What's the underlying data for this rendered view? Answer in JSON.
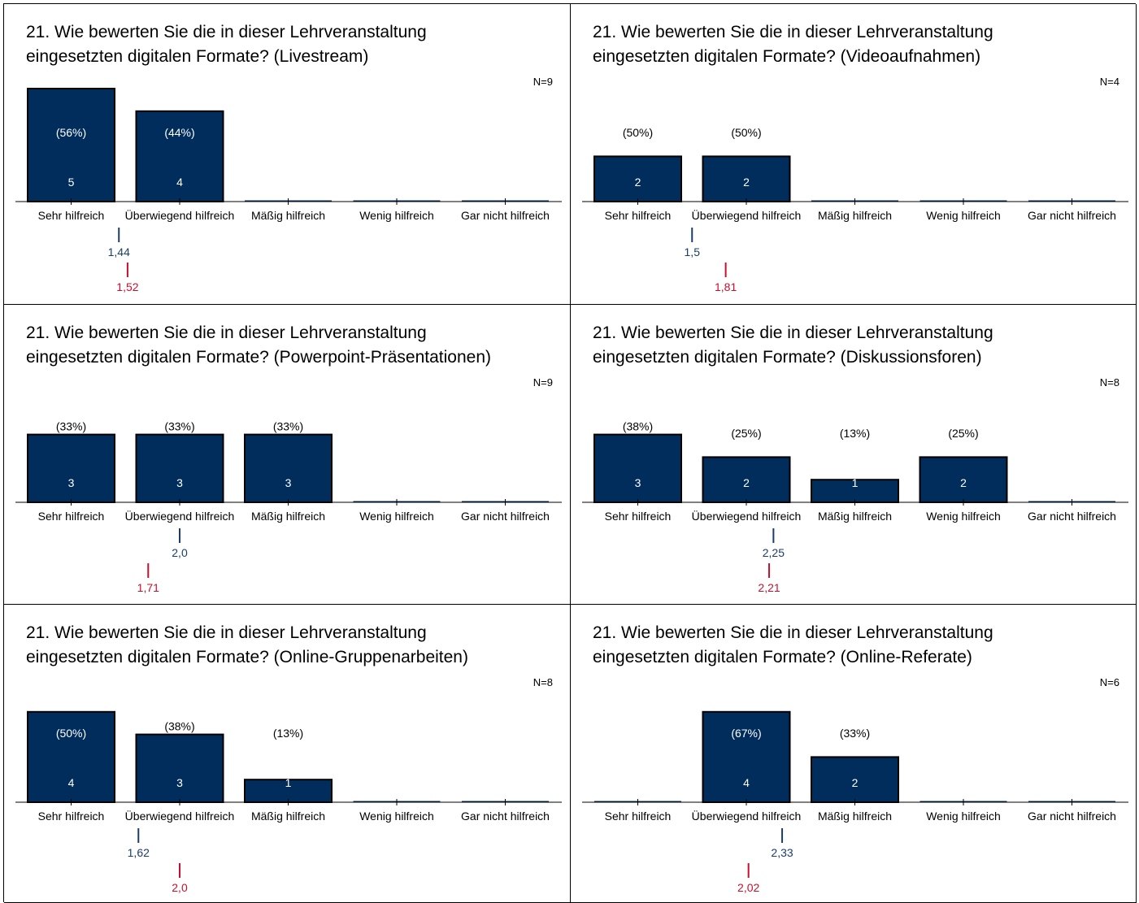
{
  "colors": {
    "bar": "#002d5c",
    "bar_border": "#000000",
    "mean": "#1b3d6b",
    "mean_ref": "#c8102e"
  },
  "chart_data": [
    {
      "type": "bar",
      "title": "21. Wie bewerten Sie die in dieser Lehrveranstaltung\neingesetzten digitalen Formate? (Livestream)",
      "n_label": "N=9",
      "categories": [
        "Sehr hilfreich",
        "Überwiegend hilfreich",
        "Mäßig hilfreich",
        "Wenig hilfreich",
        "Gar nicht hilfreich"
      ],
      "values": [
        5,
        4,
        0,
        0,
        0
      ],
      "percent_labels": [
        "(56%)",
        "(44%)",
        "",
        "",
        ""
      ],
      "mean": 1.44,
      "mean_label": "1,44",
      "ref_mean": 1.52,
      "ref_mean_label": "1,52"
    },
    {
      "type": "bar",
      "title": "21. Wie bewerten Sie die in dieser Lehrveranstaltung\neingesetzten digitalen Formate? (Videoaufnahmen)",
      "n_label": "N=4",
      "categories": [
        "Sehr hilfreich",
        "Überwiegend hilfreich",
        "Mäßig hilfreich",
        "Wenig hilfreich",
        "Gar nicht hilfreich"
      ],
      "values": [
        2,
        2,
        0,
        0,
        0
      ],
      "percent_labels": [
        "(50%)",
        "(50%)",
        "",
        "",
        ""
      ],
      "mean": 1.5,
      "mean_label": "1,5",
      "ref_mean": 1.81,
      "ref_mean_label": "1,81"
    },
    {
      "type": "bar",
      "title": "21. Wie bewerten Sie die in dieser Lehrveranstaltung\neingesetzten digitalen Formate? (Powerpoint-Präsentationen)",
      "n_label": "N=9",
      "categories": [
        "Sehr hilfreich",
        "Überwiegend hilfreich",
        "Mäßig hilfreich",
        "Wenig hilfreich",
        "Gar nicht hilfreich"
      ],
      "values": [
        3,
        3,
        3,
        0,
        0
      ],
      "percent_labels": [
        "(33%)",
        "(33%)",
        "(33%)",
        "",
        ""
      ],
      "mean": 2.0,
      "mean_label": "2,0",
      "ref_mean": 1.71,
      "ref_mean_label": "1,71"
    },
    {
      "type": "bar",
      "title": "21. Wie bewerten Sie die in dieser Lehrveranstaltung\neingesetzten digitalen Formate? (Diskussionsforen)",
      "n_label": "N=8",
      "categories": [
        "Sehr hilfreich",
        "Überwiegend hilfreich",
        "Mäßig hilfreich",
        "Wenig hilfreich",
        "Gar nicht hilfreich"
      ],
      "values": [
        3,
        2,
        1,
        2,
        0
      ],
      "percent_labels": [
        "(38%)",
        "(25%)",
        "(13%)",
        "(25%)",
        ""
      ],
      "mean": 2.25,
      "mean_label": "2,25",
      "ref_mean": 2.21,
      "ref_mean_label": "2,21"
    },
    {
      "type": "bar",
      "title": "21. Wie bewerten Sie die in dieser Lehrveranstaltung\neingesetzten digitalen Formate? (Online-Gruppenarbeiten)",
      "n_label": "N=8",
      "categories": [
        "Sehr hilfreich",
        "Überwiegend hilfreich",
        "Mäßig hilfreich",
        "Wenig hilfreich",
        "Gar nicht hilfreich"
      ],
      "values": [
        4,
        3,
        1,
        0,
        0
      ],
      "percent_labels": [
        "(50%)",
        "(38%)",
        "(13%)",
        "",
        ""
      ],
      "mean": 1.62,
      "mean_label": "1,62",
      "ref_mean": 2.0,
      "ref_mean_label": "2,0"
    },
    {
      "type": "bar",
      "title": "21. Wie bewerten Sie die in dieser Lehrveranstaltung\neingesetzten digitalen Formate? (Online-Referate)",
      "n_label": "N=6",
      "categories": [
        "Sehr hilfreich",
        "Überwiegend hilfreich",
        "Mäßig hilfreich",
        "Wenig hilfreich",
        "Gar nicht hilfreich"
      ],
      "values": [
        0,
        4,
        2,
        0,
        0
      ],
      "percent_labels": [
        "",
        "(67%)",
        "(33%)",
        "",
        ""
      ],
      "mean": 2.33,
      "mean_label": "2,33",
      "ref_mean": 2.02,
      "ref_mean_label": "2,02"
    }
  ]
}
